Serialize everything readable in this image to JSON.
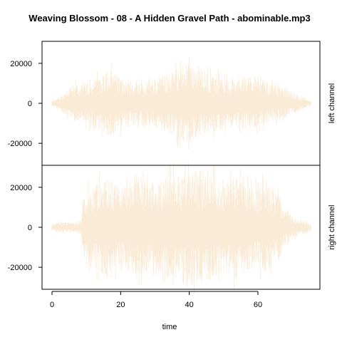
{
  "chart_data": {
    "type": "line",
    "title": "Weaving Blossom - 08 - A Hidden Gravel Path - abominable.mp3",
    "xlabel": "time",
    "x_range": [
      0,
      77
    ],
    "x_ticks": [
      0,
      20,
      40,
      60
    ],
    "ylim": [
      -31000,
      31000
    ],
    "y_ticks": [
      -20000,
      0,
      20000
    ],
    "color": "#faebd7",
    "grid": false,
    "series": [
      {
        "name": "left channel",
        "x": [
          0,
          2,
          4,
          6,
          8,
          10,
          12,
          14,
          16,
          18,
          20,
          22,
          24,
          26,
          28,
          30,
          32,
          34,
          36,
          38,
          40,
          42,
          44,
          46,
          48,
          50,
          52,
          54,
          56,
          58,
          60,
          62,
          64,
          66,
          68,
          70,
          72,
          74,
          75.5
        ],
        "envelope": [
          1500,
          3000,
          6000,
          8500,
          10000,
          10500,
          12000,
          14000,
          17000,
          16000,
          13000,
          11000,
          10500,
          10000,
          11000,
          12500,
          14000,
          15500,
          17000,
          18500,
          20000,
          18000,
          16500,
          15000,
          14000,
          13000,
          12500,
          12000,
          13500,
          14000,
          12500,
          11000,
          9500,
          8500,
          7000,
          5500,
          4000,
          2500,
          800
        ]
      },
      {
        "name": "right channel",
        "x": [
          0,
          2,
          4,
          6,
          8,
          8.5,
          9,
          10,
          12,
          14,
          16,
          18,
          20,
          22,
          24,
          26,
          28,
          30,
          32,
          34,
          36,
          38,
          40,
          42,
          44,
          46,
          48,
          50,
          52,
          54,
          56,
          58,
          60,
          62,
          64,
          66,
          67,
          68,
          70,
          72,
          74,
          75.5
        ],
        "envelope": [
          1500,
          2500,
          2500,
          2500,
          3000,
          3500,
          17000,
          19000,
          21000,
          23000,
          26000,
          23000,
          20000,
          22000,
          24000,
          25000,
          23000,
          22000,
          24000,
          26000,
          27000,
          27500,
          30000,
          28000,
          26000,
          27000,
          24000,
          22000,
          25000,
          26000,
          22000,
          21000,
          20000,
          23000,
          19000,
          17000,
          12000,
          9000,
          6000,
          4000,
          3000,
          1500
        ]
      }
    ]
  }
}
